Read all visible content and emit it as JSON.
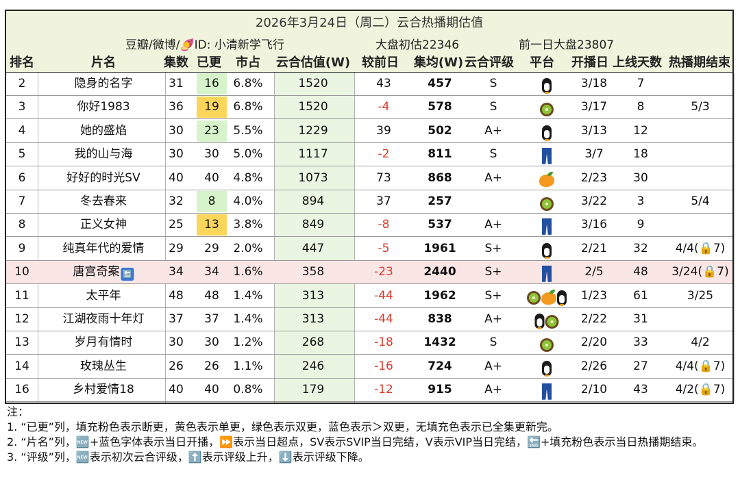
{
  "title": "2026年3月24日（周二）云合热播期估值",
  "info": {
    "source": "豆瓣/微博/🍠ID: 小清新学飞行",
    "initial": "大盘初估22346",
    "prev": "前一日大盘23807"
  },
  "headers": {
    "rank": "排名",
    "name": "片名",
    "episodes": "集数",
    "updated": "已更",
    "share": "市占",
    "estimate": "云合估值(W)",
    "change": "较前日",
    "avg": "集均(W)",
    "rating": "云合评级",
    "platform": "平台",
    "start": "开播日",
    "days": "上线天数",
    "end": "热播期结束"
  },
  "rows": [
    {
      "rank": "2",
      "name": "隐身的名字",
      "episodes": "31",
      "updated": "16",
      "update_color": "green",
      "share": "6.8%",
      "estimate": "1520",
      "change": "43",
      "avg": "457",
      "rating": "S",
      "platforms": [
        "penguin-icon"
      ],
      "start": "3/18",
      "days": "7",
      "end": ""
    },
    {
      "rank": "3",
      "name": "你好1983",
      "episodes": "36",
      "updated": "19",
      "update_color": "yellow",
      "share": "6.8%",
      "estimate": "1520",
      "change": "-4",
      "avg": "578",
      "rating": "S",
      "platforms": [
        "kiwi-icon"
      ],
      "start": "3/17",
      "days": "8",
      "end": "5/3"
    },
    {
      "rank": "4",
      "name": "她的盛焰",
      "episodes": "30",
      "updated": "23",
      "update_color": "green",
      "share": "5.5%",
      "estimate": "1229",
      "change": "39",
      "avg": "502",
      "rating": "A+",
      "platforms": [
        "penguin-icon"
      ],
      "start": "3/13",
      "days": "12",
      "end": ""
    },
    {
      "rank": "5",
      "name": "我的山与海",
      "episodes": "30",
      "updated": "30",
      "update_color": "",
      "share": "5.0%",
      "estimate": "1117",
      "change": "-2",
      "avg": "811",
      "rating": "S",
      "platforms": [
        "jeans-icon"
      ],
      "start": "3/7",
      "days": "18",
      "end": ""
    },
    {
      "rank": "6",
      "name": "好好的时光SV",
      "episodes": "40",
      "updated": "40",
      "update_color": "",
      "share": "4.8%",
      "estimate": "1073",
      "change": "73",
      "avg": "868",
      "rating": "A+",
      "platforms": [
        "mango-icon"
      ],
      "start": "2/23",
      "days": "30",
      "end": ""
    },
    {
      "rank": "7",
      "name": "冬去春来",
      "episodes": "32",
      "updated": "8",
      "update_color": "green",
      "share": "4.0%",
      "estimate": "894",
      "change": "37",
      "avg": "257",
      "rating": "",
      "platforms": [
        "kiwi-icon"
      ],
      "start": "3/22",
      "days": "3",
      "end": "5/4"
    },
    {
      "rank": "8",
      "name": "正义女神",
      "episodes": "25",
      "updated": "13",
      "update_color": "yellow",
      "share": "3.8%",
      "estimate": "849",
      "change": "-8",
      "avg": "537",
      "rating": "A+",
      "platforms": [
        "jeans-icon"
      ],
      "start": "3/16",
      "days": "9",
      "end": ""
    },
    {
      "rank": "9",
      "name": "纯真年代的爱情",
      "episodes": "29",
      "updated": "29",
      "update_color": "",
      "share": "2.0%",
      "estimate": "447",
      "change": "-5",
      "avg": "1961",
      "rating": "S+",
      "platforms": [
        "penguin-icon"
      ],
      "start": "2/21",
      "days": "32",
      "end": "4/4(🔒7)"
    },
    {
      "rank": "10",
      "name": "唐宫奇案",
      "end_tag": "🔚",
      "highlight": true,
      "episodes": "34",
      "updated": "34",
      "update_color": "",
      "share": "1.6%",
      "estimate": "358",
      "change": "-23",
      "avg": "2440",
      "rating": "S+",
      "platforms": [
        "jeans-icon"
      ],
      "start": "2/5",
      "days": "48",
      "end": "3/24(🔒7)"
    },
    {
      "rank": "11",
      "name": "太平年",
      "episodes": "48",
      "updated": "48",
      "update_color": "",
      "share": "1.4%",
      "estimate": "313",
      "change": "-44",
      "avg": "1962",
      "rating": "S+",
      "platforms": [
        "kiwi-icon",
        "mango-icon",
        "penguin-icon"
      ],
      "start": "1/23",
      "days": "61",
      "end": "3/25"
    },
    {
      "rank": "12",
      "name": "江湖夜雨十年灯",
      "episodes": "37",
      "updated": "37",
      "update_color": "",
      "share": "1.4%",
      "estimate": "313",
      "change": "-44",
      "avg": "838",
      "rating": "A+",
      "platforms": [
        "penguin-icon",
        "kiwi-icon"
      ],
      "start": "2/22",
      "days": "31",
      "end": ""
    },
    {
      "rank": "13",
      "name": "岁月有情时",
      "episodes": "30",
      "updated": "30",
      "update_color": "",
      "share": "1.2%",
      "estimate": "268",
      "change": "-18",
      "avg": "1432",
      "rating": "S",
      "platforms": [
        "kiwi-icon"
      ],
      "start": "2/20",
      "days": "33",
      "end": "4/2"
    },
    {
      "rank": "14",
      "name": "玫瑰丛生",
      "episodes": "26",
      "updated": "26",
      "update_color": "",
      "share": "1.1%",
      "estimate": "246",
      "change": "-16",
      "avg": "724",
      "rating": "A+",
      "platforms": [
        "penguin-icon"
      ],
      "start": "2/26",
      "days": "27",
      "end": "4/4(🔒7)"
    },
    {
      "rank": "16",
      "name": "乡村爱情18",
      "episodes": "40",
      "updated": "40",
      "update_color": "",
      "share": "0.8%",
      "estimate": "179",
      "change": "-12",
      "avg": "915",
      "rating": "A+",
      "platforms": [
        "jeans-icon"
      ],
      "start": "2/10",
      "days": "43",
      "end": "4/2(🔒7)"
    }
  ],
  "notes": [
    "注：",
    "1. “已更”列，填充粉色表示断更，黄色表示单更，绿色表示双更，蓝色表示＞双更，无填充色表示已全集更新完。",
    "2. “片名”列，🆕+蓝色字体表示当日开播，⏩表示当日超点，SV表示SVIP当日完结，V表示VIP当日完结，🔚+填充粉色表示当日热播期结束。",
    "3. “评级”列，🆕表示初次云合评级，⬆️表示评级上升，⬇️表示评级下降。"
  ],
  "colors": {
    "header_band": "#f0f4dc",
    "estimate_col": "#eaf5e2",
    "update_green": "#d7f3cc",
    "update_yellow": "#fbd65a",
    "negative": "#d83a2a",
    "row_highlight": "#fbe6e6"
  }
}
